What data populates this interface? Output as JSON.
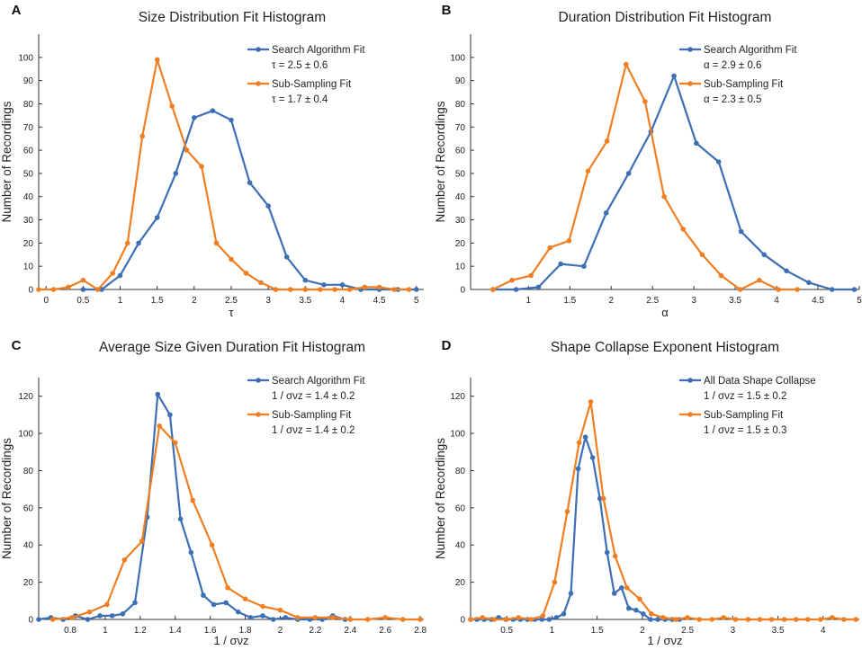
{
  "colors": {
    "blue": "#3c6fb4",
    "orange": "#f07f23",
    "axis": "#333333"
  },
  "chart_data": [
    {
      "panel": "A",
      "type": "line",
      "title": "Size Distribution Fit Histogram",
      "xlabel": "τ",
      "ylabel": "Number of Recordings",
      "xlim": [
        -0.1,
        5.1
      ],
      "ylim": [
        0,
        110
      ],
      "xticks": [
        0,
        0.5,
        1,
        1.5,
        2,
        2.5,
        3,
        3.5,
        4,
        4.5,
        5
      ],
      "xtick_labels": [
        "0",
        "0.5",
        "1",
        "1.5",
        "2",
        "2.5",
        "3",
        "3.5",
        "4",
        "4.5",
        "5"
      ],
      "yticks": [
        0,
        10,
        20,
        30,
        40,
        50,
        60,
        70,
        80,
        90,
        100
      ],
      "ytick_labels": [
        "0",
        "10",
        "20",
        "30",
        "40",
        "50",
        "60",
        "70",
        "80",
        "90",
        "100"
      ],
      "series": [
        {
          "name": "Search Algorithm Fit",
          "stat": "τ = 2.5 ± 0.6",
          "color": "blue",
          "x": [
            0.5,
            0.75,
            1.0,
            1.25,
            1.5,
            1.75,
            2.0,
            2.25,
            2.5,
            2.75,
            3.0,
            3.25,
            3.5,
            3.75,
            4.0,
            4.25,
            4.5,
            4.75,
            5.0
          ],
          "y": [
            0,
            0,
            6,
            20,
            31,
            50,
            74,
            77,
            73,
            46,
            36,
            14,
            4,
            2,
            2,
            0,
            0,
            0,
            0
          ]
        },
        {
          "name": "Sub-Sampling Fit",
          "stat": "τ = 1.7 ± 0.4",
          "color": "orange",
          "x": [
            -0.1,
            0.1,
            0.3,
            0.5,
            0.7,
            0.9,
            1.1,
            1.3,
            1.5,
            1.7,
            1.9,
            2.1,
            2.3,
            2.5,
            2.7,
            2.9,
            3.1,
            3.3,
            3.5,
            3.7,
            3.9,
            4.1,
            4.3,
            4.5,
            4.7,
            4.9
          ],
          "y": [
            0,
            0,
            1,
            4,
            0,
            7,
            20,
            66,
            99,
            79,
            60,
            53,
            20,
            13,
            7,
            3,
            0,
            0,
            0,
            0,
            0,
            0,
            1,
            1,
            0,
            0
          ]
        }
      ]
    },
    {
      "panel": "B",
      "type": "line",
      "title": "Duration Distribution Fit Histogram",
      "xlabel": "α",
      "ylabel": "Number of Recordings",
      "xlim": [
        0.3,
        5.0
      ],
      "ylim": [
        0,
        110
      ],
      "xticks": [
        1,
        1.5,
        2,
        2.5,
        3,
        3.5,
        4,
        4.5,
        5
      ],
      "xtick_labels": [
        "1",
        "1.5",
        "2",
        "2.5",
        "3",
        "3.5",
        "4",
        "4.5",
        "5"
      ],
      "yticks": [
        0,
        10,
        20,
        30,
        40,
        50,
        60,
        70,
        80,
        90,
        100
      ],
      "ytick_labels": [
        "0",
        "10",
        "20",
        "30",
        "40",
        "50",
        "60",
        "70",
        "80",
        "90",
        "100"
      ],
      "series": [
        {
          "name": "Search Algorithm Fit",
          "stat": "α = 2.9 ± 0.6",
          "color": "blue",
          "x": [
            0.57,
            0.85,
            1.12,
            1.39,
            1.67,
            1.94,
            2.21,
            2.48,
            2.76,
            3.03,
            3.3,
            3.57,
            3.85,
            4.12,
            4.39,
            4.67,
            4.94
          ],
          "y": [
            0,
            0,
            1,
            11,
            10,
            33,
            50,
            68,
            92,
            63,
            55,
            25,
            15,
            8,
            3,
            0,
            0
          ]
        },
        {
          "name": "Sub-Sampling Fit",
          "stat": "α = 2.3 ± 0.5",
          "color": "orange",
          "x": [
            0.57,
            0.8,
            1.03,
            1.26,
            1.49,
            1.72,
            1.95,
            2.18,
            2.41,
            2.64,
            2.87,
            3.1,
            3.33,
            3.56,
            3.79,
            4.02,
            4.25
          ],
          "y": [
            0,
            4,
            6,
            18,
            21,
            51,
            64,
            97,
            81,
            40,
            26,
            15,
            6,
            0,
            4,
            0,
            0
          ]
        }
      ]
    },
    {
      "panel": "C",
      "type": "line",
      "title": "Average Size Given Duration Fit Histogram",
      "xlabel": "1 / σνz",
      "ylabel": "Number of Recordings",
      "xlim": [
        0.62,
        2.82
      ],
      "ylim": [
        0,
        130
      ],
      "xticks": [
        0.8,
        1,
        1.2,
        1.4,
        1.6,
        1.8,
        2,
        2.2,
        2.4,
        2.6,
        2.8
      ],
      "xtick_labels": [
        "0.8",
        "1",
        "1.2",
        "1.4",
        "1.6",
        "1.8",
        "2",
        "2.2",
        "2.4",
        "2.6",
        "2.8"
      ],
      "yticks": [
        0,
        20,
        40,
        60,
        80,
        100,
        120
      ],
      "ytick_labels": [
        "0",
        "20",
        "40",
        "60",
        "80",
        "100",
        "120"
      ],
      "series": [
        {
          "name": "Search Algorithm Fit",
          "stat": "1 / σνz = 1.4 ± 0.2",
          "color": "blue",
          "x": [
            0.62,
            0.69,
            0.76,
            0.83,
            0.9,
            0.97,
            1.04,
            1.1,
            1.17,
            1.24,
            1.3,
            1.37,
            1.43,
            1.49,
            1.56,
            1.62,
            1.69,
            1.76,
            1.83,
            1.9,
            1.96,
            2.03,
            2.1,
            2.17,
            2.24,
            2.3,
            2.37
          ],
          "y": [
            0,
            1,
            0,
            2,
            0,
            2,
            2,
            3,
            9,
            55,
            121,
            110,
            54,
            36,
            13,
            8,
            9,
            4,
            1,
            2,
            0,
            1,
            0,
            0,
            0,
            2,
            0
          ]
        },
        {
          "name": "Sub-Sampling Fit",
          "stat": "1 / σνz = 1.4 ± 0.2",
          "color": "orange",
          "x": [
            0.7,
            0.81,
            0.91,
            1.01,
            1.11,
            1.21,
            1.31,
            1.4,
            1.5,
            1.61,
            1.7,
            1.8,
            1.9,
            2.0,
            2.1,
            2.2,
            2.3,
            2.4,
            2.5,
            2.6,
            2.7,
            2.8
          ],
          "y": [
            0,
            1,
            4,
            8,
            32,
            42,
            104,
            95,
            64,
            40,
            17,
            11,
            7,
            5,
            1,
            1,
            1,
            0,
            0,
            1,
            0,
            0
          ]
        }
      ]
    },
    {
      "panel": "D",
      "type": "line",
      "title": "Shape Collapse Exponent Histogram",
      "xlabel": "1 / σνz",
      "ylabel": "Number of Recordings",
      "xlim": [
        0.1,
        4.4
      ],
      "ylim": [
        0,
        130
      ],
      "xticks": [
        0.5,
        1,
        1.5,
        2,
        2.5,
        3,
        3.5,
        4
      ],
      "xtick_labels": [
        "0.5",
        "1",
        "1.5",
        "2",
        "2.5",
        "3",
        "3.5",
        "4"
      ],
      "yticks": [
        0,
        20,
        40,
        60,
        80,
        100,
        120
      ],
      "ytick_labels": [
        "0",
        "20",
        "40",
        "60",
        "80",
        "100",
        "120"
      ],
      "series": [
        {
          "name": "All Data Shape Collapse",
          "stat": "1 / σνz = 1.5 ± 0.2",
          "color": "blue",
          "x": [
            0.1,
            0.17,
            0.25,
            0.33,
            0.41,
            0.49,
            0.57,
            0.65,
            0.73,
            0.81,
            0.89,
            0.97,
            1.05,
            1.13,
            1.21,
            1.29,
            1.37,
            1.45,
            1.53,
            1.61,
            1.69,
            1.77,
            1.85,
            1.93,
            2.01,
            2.09,
            2.17,
            2.25,
            2.33,
            2.41
          ],
          "y": [
            0,
            0,
            0,
            0,
            1,
            0,
            0,
            0,
            0,
            0,
            0,
            0,
            1,
            3,
            14,
            81,
            98,
            87,
            65,
            36,
            14,
            17,
            6,
            5,
            3,
            0,
            0,
            0,
            0,
            0
          ]
        },
        {
          "name": "Sub-Sampling Fit",
          "stat": "1 / σνz = 1.5 ± 0.3",
          "color": "orange",
          "x": [
            0.1,
            0.23,
            0.36,
            0.5,
            0.63,
            0.77,
            0.9,
            1.03,
            1.17,
            1.3,
            1.43,
            1.57,
            1.7,
            1.83,
            1.97,
            2.1,
            2.23,
            2.37,
            2.5,
            2.63,
            2.77,
            2.9,
            3.03,
            3.17,
            3.3,
            3.43,
            3.57,
            3.7,
            3.83,
            3.97,
            4.1,
            4.23,
            4.36
          ],
          "y": [
            0,
            1,
            0,
            0,
            1,
            0,
            2,
            20,
            58,
            95,
            117,
            65,
            34,
            17,
            11,
            3,
            1,
            0,
            1,
            0,
            0,
            1,
            0,
            0,
            0,
            0,
            0,
            0,
            0,
            0,
            1,
            0,
            0
          ]
        }
      ]
    }
  ]
}
